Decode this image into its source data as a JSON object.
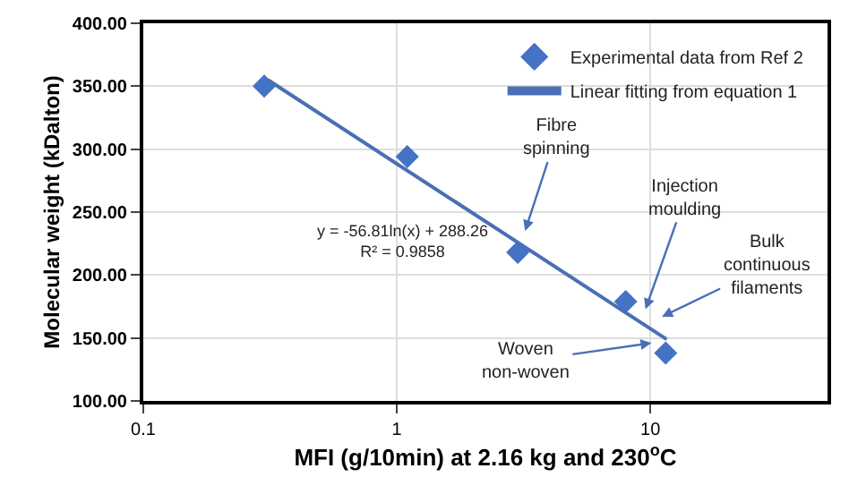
{
  "chart_data": {
    "type": "scatter",
    "xlabel": "MFI (g/10min) at 2.16 kg and 230$^{o}$C",
    "ylabel": "Molecular weight (kDalton)",
    "x": [
      0.3,
      1.1,
      3.0,
      8.0,
      11.5
    ],
    "series": [
      {
        "name": "Experimental data from Ref 2",
        "color": "#4472c4",
        "values": [
          350,
          294,
          218,
          179,
          138
        ],
        "marker": "diamond"
      },
      {
        "name": "Linear fitting from equation 1",
        "type": "line",
        "color": "#4a6fb5",
        "x": [
          0.31,
          11.6
        ],
        "values": [
          355,
          149
        ],
        "line_style": "solid"
      }
    ],
    "xlim": [
      0.1,
      50
    ],
    "xticks": [
      0.1,
      1,
      10
    ],
    "log": "x",
    "ylim": [
      100,
      400
    ],
    "yticks": [
      {
        "value": 100,
        "label": "100.00"
      },
      {
        "value": 150,
        "label": "150.00"
      },
      {
        "value": 200,
        "label": "200.00"
      },
      {
        "value": 250,
        "label": "250.00"
      },
      {
        "value": 300,
        "label": "300.00"
      },
      {
        "value": 350,
        "label": "350.00"
      },
      {
        "value": 400,
        "label": "400.00"
      }
    ],
    "grid": true,
    "legend": "top right",
    "annotations": [
      "Fibre\nspinning",
      "Injection\nmoulding",
      "Bulk\ncontinuous\nfilaments",
      {
        "text": "Woven\nnon-woven",
        "x": 10.1,
        "y": 146
      },
      "y = -56.81ln(x) + 288.26\nR² = 0.9858"
    ]
  }
}
